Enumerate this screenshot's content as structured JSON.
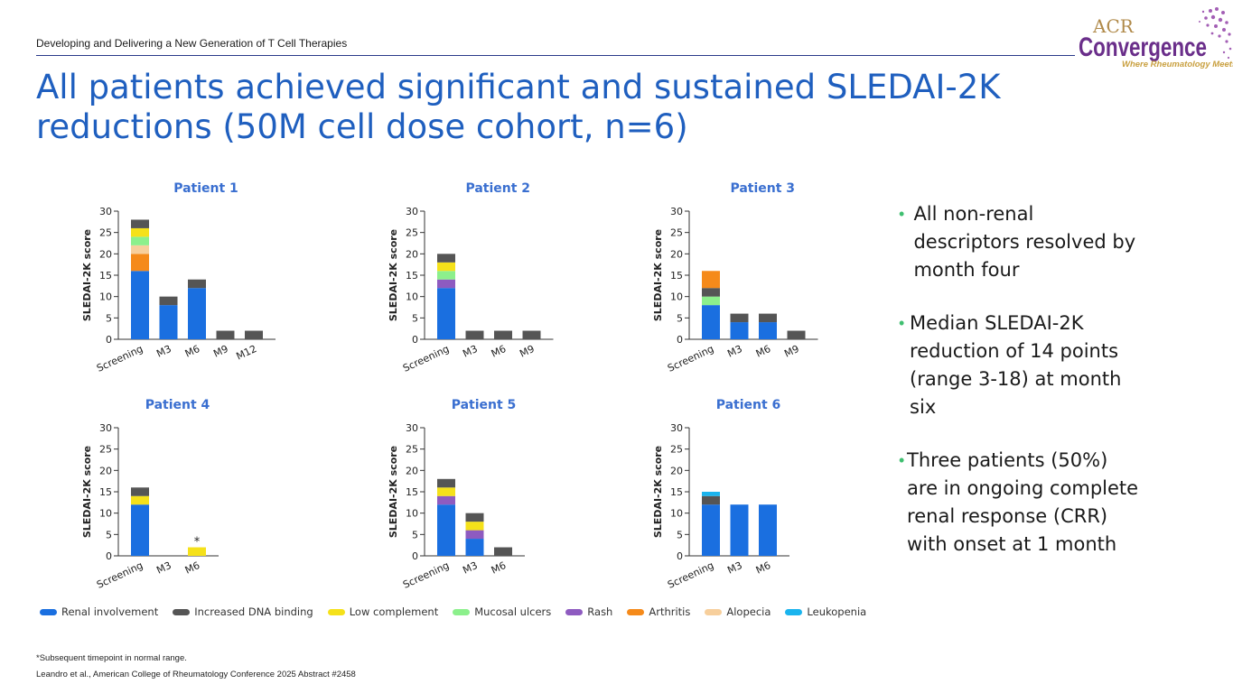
{
  "header": {
    "subtitle": "Developing and Delivering a New Generation of T Cell Therapies",
    "title": "All patients achieved significant and sustained SLEDAI-2K reductions (50M cell dose cohort, n=6)"
  },
  "logo": {
    "top": "ACR",
    "main": "Convergence",
    "tagline": "Where Rheumatology Meets"
  },
  "colors": {
    "title": "#1f5fbf",
    "Renal involvement": "#1a6fe0",
    "Increased DNA binding": "#555555",
    "Low complement": "#f5e11a",
    "Mucosal ulcers": "#8cf08c",
    "Rash": "#8e5bc0",
    "Arthritis": "#f58a1a",
    "Alopecia": "#f7cf9c",
    "Leukopenia": "#1ab4ee"
  },
  "bullets": [
    "All non-renal descriptors resolved by month four",
    "Median SLEDAI-2K reduction of 14 points (range 3-18) at month six",
    "Three patients (50%) are in ongoing complete renal response (CRR) with onset at 1 month"
  ],
  "legend": [
    "Renal involvement",
    "Increased DNA binding",
    "Low complement",
    "Mucosal ulcers",
    "Rash",
    "Arthritis",
    "Alopecia",
    "Leukopenia"
  ],
  "footnote": "*Subsequent timepoint in normal range.",
  "reference": "Leandro et al., American College of Rheumatology Conference 2025 Abstract #2458",
  "chart_data": [
    {
      "type": "bar",
      "stacked": true,
      "title": "Patient 1",
      "ylabel": "SLEDAI-2K score",
      "ylim": [
        0,
        30
      ],
      "yticks": [
        0,
        5,
        10,
        15,
        20,
        25,
        30
      ],
      "categories": [
        "Screening",
        "M3",
        "M6",
        "M9",
        "M12"
      ],
      "series": [
        {
          "name": "Renal involvement",
          "values": [
            16,
            8,
            12,
            0,
            0
          ]
        },
        {
          "name": "Arthritis",
          "values": [
            4,
            0,
            0,
            0,
            0
          ]
        },
        {
          "name": "Alopecia",
          "values": [
            2,
            0,
            0,
            0,
            0
          ]
        },
        {
          "name": "Mucosal ulcers",
          "values": [
            2,
            0,
            0,
            0,
            0
          ]
        },
        {
          "name": "Low complement",
          "values": [
            2,
            0,
            0,
            0,
            0
          ]
        },
        {
          "name": "Increased DNA binding",
          "values": [
            2,
            2,
            2,
            2,
            2
          ]
        }
      ]
    },
    {
      "type": "bar",
      "stacked": true,
      "title": "Patient 2",
      "ylabel": "SLEDAI-2K score",
      "ylim": [
        0,
        30
      ],
      "yticks": [
        0,
        5,
        10,
        15,
        20,
        25,
        30
      ],
      "categories": [
        "Screening",
        "M3",
        "M6",
        "M9"
      ],
      "series": [
        {
          "name": "Renal involvement",
          "values": [
            12,
            0,
            0,
            0
          ]
        },
        {
          "name": "Rash",
          "values": [
            2,
            0,
            0,
            0
          ]
        },
        {
          "name": "Mucosal ulcers",
          "values": [
            2,
            0,
            0,
            0
          ]
        },
        {
          "name": "Low complement",
          "values": [
            2,
            0,
            0,
            0
          ]
        },
        {
          "name": "Increased DNA binding",
          "values": [
            2,
            2,
            2,
            2
          ]
        }
      ]
    },
    {
      "type": "bar",
      "stacked": true,
      "title": "Patient 3",
      "ylabel": "SLEDAI-2K score",
      "ylim": [
        0,
        30
      ],
      "yticks": [
        0,
        5,
        10,
        15,
        20,
        25,
        30
      ],
      "categories": [
        "Screening",
        "M3",
        "M6",
        "M9"
      ],
      "series": [
        {
          "name": "Renal involvement",
          "values": [
            8,
            4,
            4,
            0
          ]
        },
        {
          "name": "Mucosal ulcers",
          "values": [
            2,
            0,
            0,
            0
          ]
        },
        {
          "name": "Increased DNA binding",
          "values": [
            2,
            2,
            2,
            2
          ]
        },
        {
          "name": "Arthritis",
          "values": [
            4,
            0,
            0,
            0
          ]
        }
      ]
    },
    {
      "type": "bar",
      "stacked": true,
      "title": "Patient 4",
      "ylabel": "SLEDAI-2K score",
      "ylim": [
        0,
        30
      ],
      "yticks": [
        0,
        5,
        10,
        15,
        20,
        25,
        30
      ],
      "categories": [
        "Screening",
        "M3",
        "M6"
      ],
      "annotations": [
        {
          "category": "M6",
          "text": "*"
        }
      ],
      "series": [
        {
          "name": "Renal involvement",
          "values": [
            12,
            0,
            0
          ]
        },
        {
          "name": "Low complement",
          "values": [
            2,
            0,
            2
          ]
        },
        {
          "name": "Increased DNA binding",
          "values": [
            2,
            0,
            0
          ]
        }
      ]
    },
    {
      "type": "bar",
      "stacked": true,
      "title": "Patient 5",
      "ylabel": "SLEDAI-2K score",
      "ylim": [
        0,
        30
      ],
      "yticks": [
        0,
        5,
        10,
        15,
        20,
        25,
        30
      ],
      "categories": [
        "Screening",
        "M3",
        "M6"
      ],
      "series": [
        {
          "name": "Renal involvement",
          "values": [
            12,
            4,
            0
          ]
        },
        {
          "name": "Rash",
          "values": [
            2,
            2,
            0
          ]
        },
        {
          "name": "Low complement",
          "values": [
            2,
            2,
            0
          ]
        },
        {
          "name": "Increased DNA binding",
          "values": [
            2,
            2,
            2
          ]
        }
      ]
    },
    {
      "type": "bar",
      "stacked": true,
      "title": "Patient 6",
      "ylabel": "SLEDAI-2K score",
      "ylim": [
        0,
        30
      ],
      "yticks": [
        0,
        5,
        10,
        15,
        20,
        25,
        30
      ],
      "categories": [
        "Screening",
        "M3",
        "M6"
      ],
      "series": [
        {
          "name": "Renal involvement",
          "values": [
            12,
            12,
            12
          ]
        },
        {
          "name": "Increased DNA binding",
          "values": [
            2,
            0,
            0
          ]
        },
        {
          "name": "Leukopenia",
          "values": [
            1,
            0,
            0
          ]
        }
      ]
    }
  ]
}
